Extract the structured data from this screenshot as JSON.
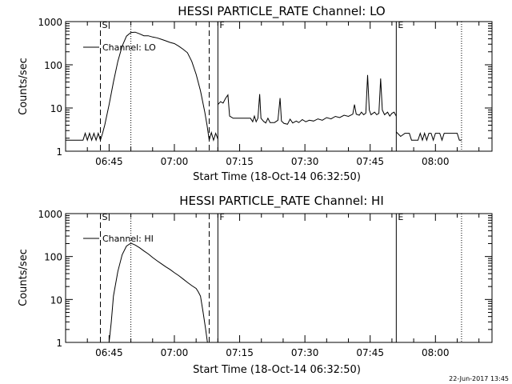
{
  "chart_data": [
    {
      "type": "line",
      "title": "HESSI PARTICLE_RATE Channel: LO",
      "xlabel": "Start Time (18-Oct-14 06:32:50)",
      "ylabel": "Counts/sec",
      "y_scale": "log",
      "ylim": [
        1,
        1000
      ],
      "xlim": [
        "06:35",
        "08:13"
      ],
      "x_ticks": [
        "06:45",
        "07:00",
        "07:15",
        "07:30",
        "07:45",
        "08:00"
      ],
      "y_ticks": [
        "1",
        "10",
        "100",
        "1000"
      ],
      "legend": "Channel: LO",
      "legend_position": "upper-left",
      "grid": false,
      "markers": [
        {
          "label": "S",
          "time": "06:43",
          "style": "dashed"
        },
        {
          "time": "06:50",
          "style": "dotted"
        },
        {
          "time": "07:08",
          "style": "dashed"
        },
        {
          "label": "F",
          "time": "07:10",
          "style": "solid"
        },
        {
          "label": "E",
          "time": "07:51",
          "style": "solid"
        },
        {
          "time": "08:06",
          "style": "dotted"
        }
      ],
      "series": [
        {
          "name": "Channel: LO",
          "segments": [
            [
              [
                "06:35",
                1.8
              ],
              [
                "06:37",
                1.8
              ],
              [
                "06:39",
                1.8
              ],
              [
                "06:39.5",
                2.6
              ],
              [
                "06:40",
                1.8
              ],
              [
                "06:40.5",
                2.6
              ],
              [
                "06:41",
                1.8
              ],
              [
                "06:41.5",
                2.6
              ],
              [
                "06:42",
                1.8
              ],
              [
                "06:42.5",
                2.6
              ],
              [
                "06:43",
                1.8
              ],
              [
                "06:43.5",
                2.6
              ],
              [
                "06:44",
                4
              ],
              [
                "06:45",
                12
              ],
              [
                "06:46",
                40
              ],
              [
                "06:47",
                120
              ],
              [
                "06:48",
                270
              ],
              [
                "06:49",
                460
              ],
              [
                "06:50",
                560
              ],
              [
                "06:51",
                570
              ],
              [
                "06:52",
                520
              ],
              [
                "06:53",
                470
              ],
              [
                "06:54",
                470
              ],
              [
                "06:55",
                440
              ],
              [
                "06:56",
                420
              ],
              [
                "06:57",
                390
              ],
              [
                "06:58",
                360
              ],
              [
                "06:59",
                330
              ],
              [
                "07:00",
                310
              ],
              [
                "07:01",
                270
              ],
              [
                "07:02",
                230
              ],
              [
                "07:03",
                190
              ],
              [
                "07:04",
                120
              ],
              [
                "07:05",
                60
              ],
              [
                "07:06",
                25
              ],
              [
                "07:07",
                8
              ],
              [
                "07:07.5",
                4
              ],
              [
                "07:08",
                1.8
              ],
              [
                "07:08.5",
                2.7
              ],
              [
                "07:09",
                1.8
              ],
              [
                "07:09.5",
                2.6
              ],
              [
                "07:10",
                1.9
              ]
            ],
            [
              [
                "07:10",
                12
              ],
              [
                "07:10.6",
                14
              ],
              [
                "07:11.2",
                13
              ],
              [
                "07:11.8",
                17
              ],
              [
                "07:12.3",
                20
              ],
              [
                "07:12.7",
                6.5
              ],
              [
                "07:13.5",
                5.8
              ],
              [
                "07:14.5",
                5.8
              ],
              [
                "07:16",
                5.8
              ],
              [
                "07:17.5",
                5.8
              ],
              [
                "07:18",
                4.8
              ],
              [
                "07:18.4",
                6.5
              ],
              [
                "07:18.8",
                4.8
              ],
              [
                "07:19.2",
                5.8
              ],
              [
                "07:19.6",
                21
              ],
              [
                "07:19.9",
                5.8
              ],
              [
                "07:20.5",
                4.9
              ],
              [
                "07:21",
                4.5
              ],
              [
                "07:21.5",
                5.8
              ],
              [
                "07:22",
                4.6
              ],
              [
                "07:23",
                4.6
              ],
              [
                "07:23.8",
                5.2
              ],
              [
                "07:24.3",
                17
              ],
              [
                "07:24.6",
                5
              ],
              [
                "07:25.2",
                4.4
              ],
              [
                "07:26",
                4.2
              ],
              [
                "07:26.6",
                5.5
              ],
              [
                "07:27.2",
                4.5
              ],
              [
                "07:28",
                5
              ],
              [
                "07:28.6",
                4.6
              ],
              [
                "07:29.4",
                5.4
              ],
              [
                "07:30.2",
                4.8
              ],
              [
                "07:31",
                5.2
              ],
              [
                "07:32",
                5
              ],
              [
                "07:33",
                5.6
              ],
              [
                "07:34",
                5.2
              ],
              [
                "07:35",
                6
              ],
              [
                "07:36",
                5.6
              ],
              [
                "07:37",
                6.4
              ],
              [
                "07:38",
                6
              ],
              [
                "07:39",
                6.8
              ],
              [
                "07:40",
                6.4
              ],
              [
                "07:41",
                7.2
              ],
              [
                "07:41.4",
                12
              ],
              [
                "07:41.8",
                7.2
              ],
              [
                "07:42.5",
                6.8
              ],
              [
                "07:43",
                8
              ],
              [
                "07:43.5",
                7
              ],
              [
                "07:44",
                7.6
              ],
              [
                "07:44.4",
                58
              ],
              [
                "07:44.8",
                9
              ],
              [
                "07:45.2",
                7
              ],
              [
                "07:46",
                8
              ],
              [
                "07:46.5",
                7
              ],
              [
                "07:47",
                7.5
              ],
              [
                "07:47.4",
                48
              ],
              [
                "07:47.8",
                9
              ],
              [
                "07:48.3",
                7
              ],
              [
                "07:49",
                8
              ],
              [
                "07:49.5",
                6.5
              ],
              [
                "07:50",
                7.5
              ],
              [
                "07:50.5",
                8
              ],
              [
                "07:51",
                6.5
              ]
            ],
            [
              [
                "07:51",
                2.8
              ],
              [
                "07:52",
                2.2
              ],
              [
                "07:53",
                2.6
              ],
              [
                "07:54",
                2.6
              ],
              [
                "07:54.5",
                1.8
              ],
              [
                "07:56",
                1.8
              ],
              [
                "07:56.5",
                2.6
              ],
              [
                "07:57",
                1.8
              ],
              [
                "07:57.5",
                2.6
              ],
              [
                "07:58",
                1.8
              ],
              [
                "07:58.5",
                2.6
              ],
              [
                "07:59",
                2.6
              ],
              [
                "07:59.5",
                1.8
              ],
              [
                "08:00",
                2.6
              ],
              [
                "08:01",
                2.6
              ],
              [
                "08:01.5",
                1.8
              ],
              [
                "08:02",
                2.6
              ],
              [
                "08:03",
                2.6
              ],
              [
                "08:04",
                2.6
              ],
              [
                "08:05",
                2.6
              ],
              [
                "08:05.5",
                1.8
              ],
              [
                "08:06",
                1.8
              ]
            ]
          ]
        }
      ]
    },
    {
      "type": "line",
      "title": "HESSI PARTICLE_RATE Channel: HI",
      "xlabel": "Start Time (18-Oct-14 06:32:50)",
      "ylabel": "Counts/sec",
      "y_scale": "log",
      "ylim": [
        1,
        1000
      ],
      "xlim": [
        "06:35",
        "08:13"
      ],
      "x_ticks": [
        "06:45",
        "07:00",
        "07:15",
        "07:30",
        "07:45",
        "08:00"
      ],
      "y_ticks": [
        "1",
        "10",
        "100",
        "1000"
      ],
      "legend": "Channel: HI",
      "legend_position": "upper-left",
      "grid": false,
      "markers": [
        {
          "label": "S",
          "time": "06:43",
          "style": "dashed"
        },
        {
          "time": "06:50",
          "style": "dotted"
        },
        {
          "time": "07:08",
          "style": "dashed"
        },
        {
          "label": "F",
          "time": "07:10",
          "style": "solid"
        },
        {
          "label": "E",
          "time": "07:51",
          "style": "solid"
        },
        {
          "time": "08:06",
          "style": "dotted"
        }
      ],
      "series": [
        {
          "name": "Channel: HI",
          "segments": [
            [
              [
                "06:45",
                1
              ],
              [
                "06:45.5",
                3
              ],
              [
                "06:46",
                12
              ],
              [
                "06:47",
                45
              ],
              [
                "06:48",
                110
              ],
              [
                "06:49",
                175
              ],
              [
                "06:50",
                205
              ],
              [
                "06:51",
                185
              ],
              [
                "06:52",
                160
              ],
              [
                "06:53",
                135
              ],
              [
                "06:54",
                115
              ],
              [
                "06:55",
                95
              ],
              [
                "06:56",
                80
              ],
              [
                "06:57",
                68
              ],
              [
                "06:58",
                58
              ],
              [
                "06:59",
                50
              ],
              [
                "07:00",
                42
              ],
              [
                "07:01",
                36
              ],
              [
                "07:02",
                30
              ],
              [
                "07:03",
                25
              ],
              [
                "07:04",
                21
              ],
              [
                "07:05",
                18
              ],
              [
                "07:05.5",
                15
              ],
              [
                "07:06",
                12
              ],
              [
                "07:06.6",
                5
              ],
              [
                "07:07.2",
                2
              ],
              [
                "07:07.6",
                1
              ]
            ]
          ]
        }
      ]
    }
  ],
  "footer": {
    "timestamp": "22-Jun-2017 13:45"
  }
}
